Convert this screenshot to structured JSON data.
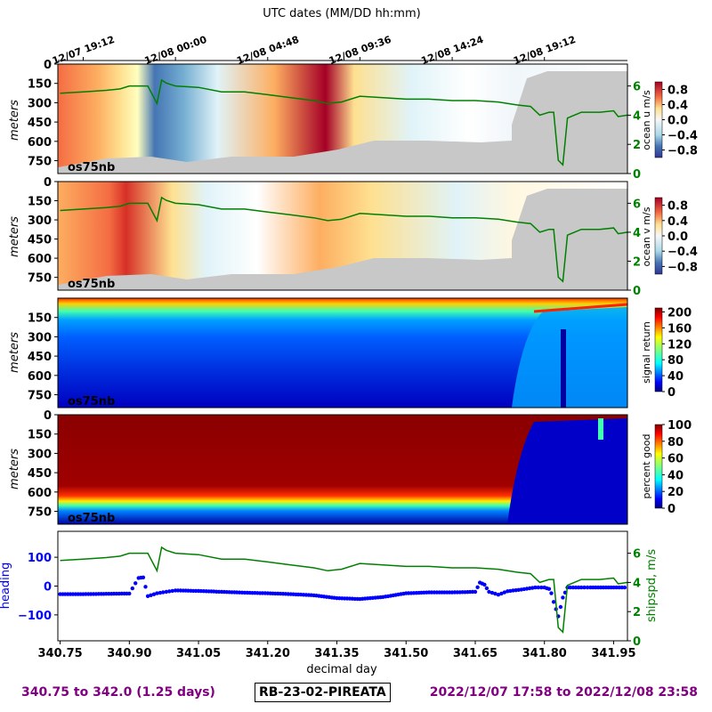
{
  "top_axis_title": "UTC dates (MM/DD hh:mm)",
  "footer": {
    "range_text": "340.75 to 342.0 (1.25 days)",
    "cruise_id": "RB-23-02-PIREATA",
    "date_range_text": "2022/12/07 17:58 to 2022/12/08 23:58"
  },
  "colors": {
    "purple": "#800080",
    "shipspd": "#008000",
    "heading": "#0000ff",
    "nodata": "#c8c8c8"
  },
  "chart_data": [
    {
      "type": "heatmap",
      "panel": "ocean-u",
      "instrument_label": "os75nb",
      "ylabel": "meters",
      "yticks": [
        "0",
        "150",
        "300",
        "450",
        "600",
        "750"
      ],
      "ylim": [
        0,
        850
      ],
      "colorbar_label": "ocean u m/s",
      "colorbar_ticks": [
        "0.8",
        "0.4",
        "0.0",
        "−0.4",
        "−0.8"
      ],
      "colormap": "RdYlBu_r",
      "clim": [
        -1.0,
        1.0
      ],
      "right_axis_ticks": [
        "6",
        "4",
        "2",
        "0"
      ],
      "right_axis_range": [
        0,
        7.5
      ]
    },
    {
      "type": "heatmap",
      "panel": "ocean-v",
      "instrument_label": "os75nb",
      "ylabel": "meters",
      "yticks": [
        "0",
        "150",
        "300",
        "450",
        "600",
        "750"
      ],
      "ylim": [
        0,
        850
      ],
      "colorbar_label": "ocean v m/s",
      "colorbar_ticks": [
        "0.8",
        "0.4",
        "0.0",
        "−0.4",
        "−0.8"
      ],
      "colormap": "RdYlBu_r",
      "clim": [
        -1.0,
        1.0
      ],
      "right_axis_ticks": [
        "6",
        "4",
        "2",
        "0"
      ],
      "right_axis_range": [
        0,
        7.5
      ]
    },
    {
      "type": "heatmap",
      "panel": "signal-return",
      "instrument_label": "os75nb",
      "ylabel": "meters",
      "yticks": [
        "150",
        "300",
        "450",
        "600",
        "750"
      ],
      "ylim": [
        0,
        850
      ],
      "colorbar_label": "signal return",
      "colorbar_ticks": [
        "200",
        "160",
        "120",
        "80",
        "40",
        "0"
      ],
      "colormap": "jet",
      "clim": [
        0,
        210
      ]
    },
    {
      "type": "heatmap",
      "panel": "percent-good",
      "instrument_label": "os75nb",
      "ylabel": "meters",
      "yticks": [
        "0",
        "150",
        "300",
        "450",
        "600",
        "750"
      ],
      "ylim": [
        0,
        850
      ],
      "colorbar_label": "percent good",
      "colorbar_ticks": [
        "100",
        "80",
        "60",
        "40",
        "20",
        "0"
      ],
      "colormap": "jet",
      "clim": [
        0,
        100
      ]
    },
    {
      "type": "line",
      "panel": "heading-shipspd",
      "xlabel": "decimal day",
      "xticks": [
        "340.75",
        "340.90",
        "341.05",
        "341.20",
        "341.35",
        "341.50",
        "341.65",
        "341.80",
        "341.95"
      ],
      "xlim": [
        340.745,
        341.98
      ],
      "left_axis_label": "heading",
      "left_axis_ticks": [
        "100",
        "0",
        "−100"
      ],
      "left_axis_range": [
        -190,
        190
      ],
      "right_axis_label": "shipspd, m/s",
      "right_axis_ticks": [
        "6",
        "4",
        "2",
        "0"
      ],
      "right_axis_range": [
        0,
        7.5
      ],
      "top_axis_ticks": [
        "12/07 19:12",
        "12/08 00:00",
        "12/08 04:48",
        "12/08 09:36",
        "12/08 14:24",
        "12/08 19:12"
      ],
      "top_axis_tick_days": [
        340.8,
        341.0,
        341.2,
        341.4,
        341.6,
        341.8
      ],
      "series": [
        {
          "name": "shipspd",
          "x": [
            340.75,
            340.8,
            340.85,
            340.88,
            340.9,
            340.94,
            340.96,
            340.97,
            340.98,
            341.0,
            341.05,
            341.1,
            341.15,
            341.2,
            341.25,
            341.3,
            341.33,
            341.36,
            341.4,
            341.45,
            341.5,
            341.55,
            341.6,
            341.65,
            341.7,
            341.74,
            341.77,
            341.79,
            341.81,
            341.82,
            341.83,
            341.84,
            341.85,
            341.88,
            341.92,
            341.95,
            341.96,
            341.98
          ],
          "y": [
            5.5,
            5.6,
            5.7,
            5.8,
            6.0,
            6.0,
            4.8,
            6.4,
            6.2,
            6.0,
            5.9,
            5.6,
            5.6,
            5.4,
            5.2,
            5.0,
            4.8,
            4.9,
            5.3,
            5.2,
            5.1,
            5.1,
            5.0,
            5.0,
            4.9,
            4.7,
            4.6,
            4.0,
            4.2,
            4.2,
            0.9,
            0.6,
            3.8,
            4.2,
            4.2,
            4.3,
            3.9,
            4.0
          ]
        },
        {
          "name": "heading",
          "x": [
            340.75,
            340.8,
            340.85,
            340.9,
            340.92,
            340.93,
            340.94,
            340.96,
            340.98,
            341.0,
            341.05,
            341.1,
            341.15,
            341.2,
            341.25,
            341.3,
            341.35,
            341.4,
            341.45,
            341.5,
            341.55,
            341.6,
            341.65,
            341.66,
            341.67,
            341.68,
            341.7,
            341.72,
            341.75,
            341.78,
            341.8,
            341.81,
            341.815,
            341.82,
            341.83,
            341.84,
            341.85,
            341.88,
            341.9,
            341.95,
            341.98
          ],
          "y": [
            -28,
            -28,
            -27,
            -26,
            28,
            30,
            -35,
            -25,
            -20,
            -15,
            -17,
            -20,
            -23,
            -25,
            -28,
            -32,
            -42,
            -45,
            -38,
            -25,
            -22,
            -22,
            -20,
            12,
            5,
            -20,
            -30,
            -18,
            -12,
            -5,
            -5,
            -10,
            -25,
            -55,
            -105,
            -40,
            -5,
            -5,
            -5,
            -5,
            -5
          ]
        }
      ]
    }
  ]
}
